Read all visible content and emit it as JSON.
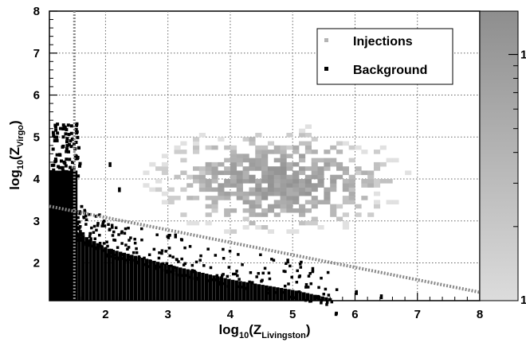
{
  "chart_data": {
    "type": "heatmap",
    "title": "",
    "xlabel": {
      "base": "log",
      "sub": "10",
      "open": "(Z",
      "inner_sub": "Livingston",
      "close": ")"
    },
    "ylabel": {
      "base": "log",
      "sub": "10",
      "open": "(Z",
      "inner_sub": "Virgo",
      "close": ")"
    },
    "xlim": [
      1.1,
      8
    ],
    "ylim": [
      1.1,
      8
    ],
    "x_ticks": [
      "2",
      "3",
      "4",
      "5",
      "6",
      "7",
      "8"
    ],
    "y_ticks": [
      "2",
      "3",
      "4",
      "5",
      "6",
      "7",
      "8"
    ],
    "grid": true,
    "legend_position": "top-right",
    "legend": [
      {
        "label": "Injections",
        "color": "#b4b4b4"
      },
      {
        "label": "Background",
        "color": "#000000"
      }
    ],
    "colorbar": {
      "scale": "log",
      "min": 1,
      "max": 15,
      "tick_labels": [
        "1",
        "10"
      ],
      "minor_ticks": [
        2,
        3,
        4,
        5,
        6,
        7,
        8,
        9
      ]
    },
    "cuts": {
      "vertical_line_x": 1.5,
      "diagonal_line": {
        "x": [
          1.1,
          8
        ],
        "y": [
          3.35,
          1.3
        ]
      }
    },
    "injections_density": {
      "center_x": 4.7,
      "center_y": 3.9,
      "x_range": [
        1.8,
        7.4
      ],
      "y_range": [
        1.5,
        5.6
      ],
      "peak_count": 14
    },
    "background_region": {
      "dense_x_range": [
        1.1,
        1.55
      ],
      "dense_y_range": [
        1.1,
        5.3
      ],
      "upper_y_at_x": {
        "x": [
          1.5,
          2,
          3,
          4,
          5,
          5.6
        ],
        "y": [
          2.9,
          2.5,
          2.1,
          1.75,
          1.5,
          1.3
        ]
      }
    },
    "colors": {
      "background_points": "#000000",
      "cut_lines": "#888888",
      "grid": "#666666"
    }
  }
}
